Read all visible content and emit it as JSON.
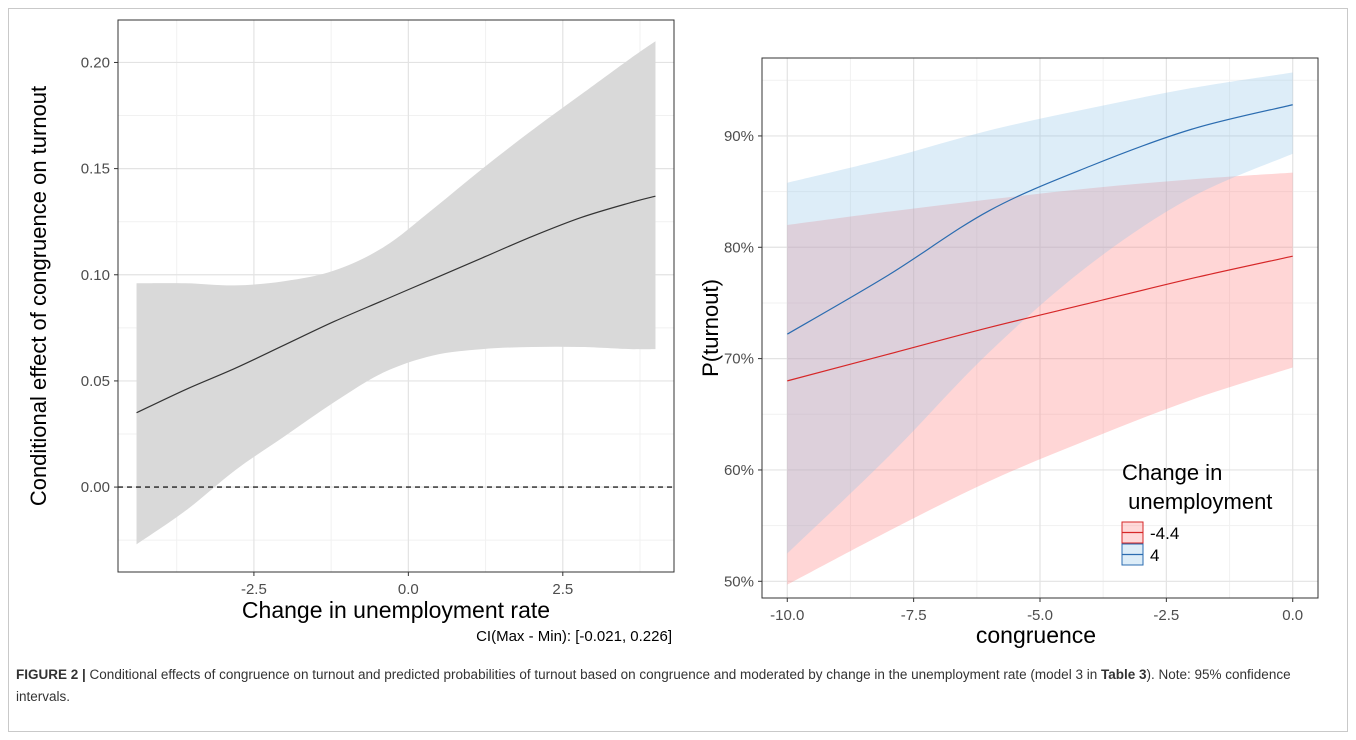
{
  "chart_data": [
    {
      "type": "line",
      "xlabel": "Change in unemployment rate",
      "ylabel": "Conditional effect of congruence on turnout",
      "xlim": [
        -4.7,
        4.3
      ],
      "ylim": [
        -0.04,
        0.22
      ],
      "x_ticks": [
        "-2.5",
        "0.0",
        "2.5"
      ],
      "y_ticks": [
        "0.00",
        "0.05",
        "0.10",
        "0.15",
        "0.20"
      ],
      "grid": true,
      "reference_line": {
        "y": 0,
        "style": "dashed"
      },
      "series": [
        {
          "x": [
            -4.4,
            -3.6,
            -2.8,
            -2.0,
            -1.2,
            -0.4,
            0.4,
            1.2,
            2.0,
            2.8,
            3.6,
            4.0
          ],
          "values": [
            0.035,
            0.046,
            0.056,
            0.067,
            0.078,
            0.088,
            0.098,
            0.108,
            0.118,
            0.127,
            0.134,
            0.137
          ],
          "lower": [
            -0.027,
            -0.011,
            0.008,
            0.024,
            0.04,
            0.054,
            0.062,
            0.065,
            0.066,
            0.066,
            0.065,
            0.065
          ],
          "upper": [
            0.096,
            0.096,
            0.095,
            0.097,
            0.102,
            0.113,
            0.131,
            0.15,
            0.168,
            0.185,
            0.202,
            0.21
          ],
          "color": "#333333",
          "band_color": "#d9d9d9"
        }
      ],
      "annotation": "CI(Max - Min): [-0.021, 0.226]"
    },
    {
      "type": "line",
      "xlabel": "congruence",
      "ylabel": "P(turnout)",
      "xlim": [
        -10.5,
        0.5
      ],
      "ylim": [
        0.485,
        0.97
      ],
      "x_ticks": [
        "-10.0",
        "-7.5",
        "-5.0",
        "-2.5",
        "0.0"
      ],
      "y_ticks": [
        "50%",
        "60%",
        "70%",
        "80%",
        "90%"
      ],
      "grid": true,
      "legend": {
        "title": "Change in\n unemployment",
        "placement": "bottom-right"
      },
      "series": [
        {
          "name": "-4.4",
          "color": "#d62728",
          "band_color": "#ff8080",
          "x": [
            -10,
            -8,
            -6,
            -4,
            -2,
            0
          ],
          "values": [
            0.68,
            0.704,
            0.728,
            0.75,
            0.772,
            0.792
          ],
          "lower": [
            0.497,
            0.545,
            0.59,
            0.628,
            0.663,
            0.692
          ],
          "upper": [
            0.82,
            0.832,
            0.843,
            0.853,
            0.861,
            0.867
          ]
        },
        {
          "name": "4",
          "color": "#2b6cb0",
          "band_color": "#8fc3e8",
          "x": [
            -10,
            -8,
            -6,
            -4,
            -2,
            0
          ],
          "values": [
            0.722,
            0.775,
            0.833,
            0.873,
            0.906,
            0.928
          ],
          "lower": [
            0.525,
            0.612,
            0.706,
            0.785,
            0.845,
            0.884
          ],
          "upper": [
            0.858,
            0.88,
            0.905,
            0.925,
            0.943,
            0.957
          ]
        }
      ]
    }
  ],
  "caption": {
    "label": "FIGURE 2 |",
    "text_1": " Conditional effects of congruence on turnout and predicted probabilities of turnout based on congruence and moderated by change in the unemployment rate (model 3 in ",
    "table_ref": "Table 3",
    "text_2": "). Note: 95% confidence intervals."
  }
}
